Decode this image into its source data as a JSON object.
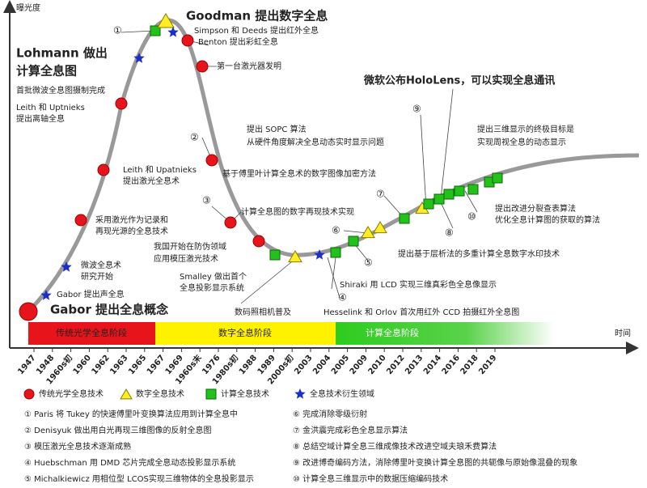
{
  "axis": {
    "y_label": "曝光度",
    "x_label": "时间"
  },
  "phases": [
    "传统光学全息阶段",
    "数字全息阶段",
    "计算全息阶段"
  ],
  "annotations": [
    "Gabor 提出全息概念",
    "Gabor 提出声全息",
    "微波全息术",
    "研究开始",
    "采用激光作为记录和",
    "再现光源的全息技术",
    "Leith 和 Upatnieks",
    "提出激光全息术",
    "Leith 和 Uptnieks",
    "提出离轴全息",
    "首批微波全息图摄制完成",
    "Lohmann 做出",
    "计算全息图",
    "①",
    "Goodman 提出数字全息",
    "Simpson 和 Deeds 提出红外全息",
    "Benton 提出彩虹全息",
    "第一台激光器发明",
    "②",
    "基于傅里叶计算全息术的数字图像加密方法",
    "③",
    "计算全息图的数字再现技术实现",
    "我国开始在防伪领域",
    "应用模压激光技术",
    "Smalley 做出首个",
    "全息投影显示系统",
    "数码照相机普及",
    "④",
    "Hesselink 和 Orlov 首次用红外 CCD 拍摄红外全息图",
    "Shiraki 用 LCD 实现三维真彩色全息像显示",
    "⑤",
    "⑥",
    "提出 SOPC 算法",
    "从硬件角度解决全息动态实时显示问题",
    "⑦",
    "微软公布HoloLens，可以实现全息通讯",
    "⑨",
    "提出三维显示的终极目标是",
    "实现周视全息的动态显示",
    "⑧",
    "提出基于层析法的多重计算全息数字水印技术",
    "⑩",
    "提出改进分裂查表算法",
    "优化全息计算图的获取的算法"
  ],
  "years": [
    "1947",
    "1948",
    "1960s初",
    "1960",
    "1962",
    "1963",
    "1965",
    "1967",
    "1969",
    "1960s末",
    "1976",
    "1980s初",
    "1988",
    "1989",
    "2000s初",
    "2003",
    "2004",
    "2005",
    "2009",
    "2010",
    "2012",
    "2013",
    "2014",
    "2016",
    "2018",
    "2019"
  ],
  "legend": [
    "传统光学全息技术",
    "数字全息技术",
    "计算全息技术",
    "全息技术衍生领域"
  ],
  "notes": [
    "① Paris 将 Tukey 的快速傅里叶变换算法应用到计算全息中",
    "② Denisyuk 做出用白光再现三维图像的反射全息图",
    "③ 模压激光全息技术逐渐成熟",
    "④ Huebschman 用 DMD 芯片完成全息动态投影显示系统",
    "⑤ Michalkiewicz 用相位型 LCOS实现三维物体的全息投影显示",
    "⑥ 完成消除零级衍射",
    "⑦ 金洪震完成彩色全息显示算法",
    "⑧ 总结空域计算全息三维成像技术改进空域夫琅禾费算法",
    "⑨ 改进博奇编码方法，消除傅里叶变换计算全息图的共轭像与原始像混叠的现象",
    "⑩ 计算全息三维显示中的数据压缩编码技术"
  ]
}
